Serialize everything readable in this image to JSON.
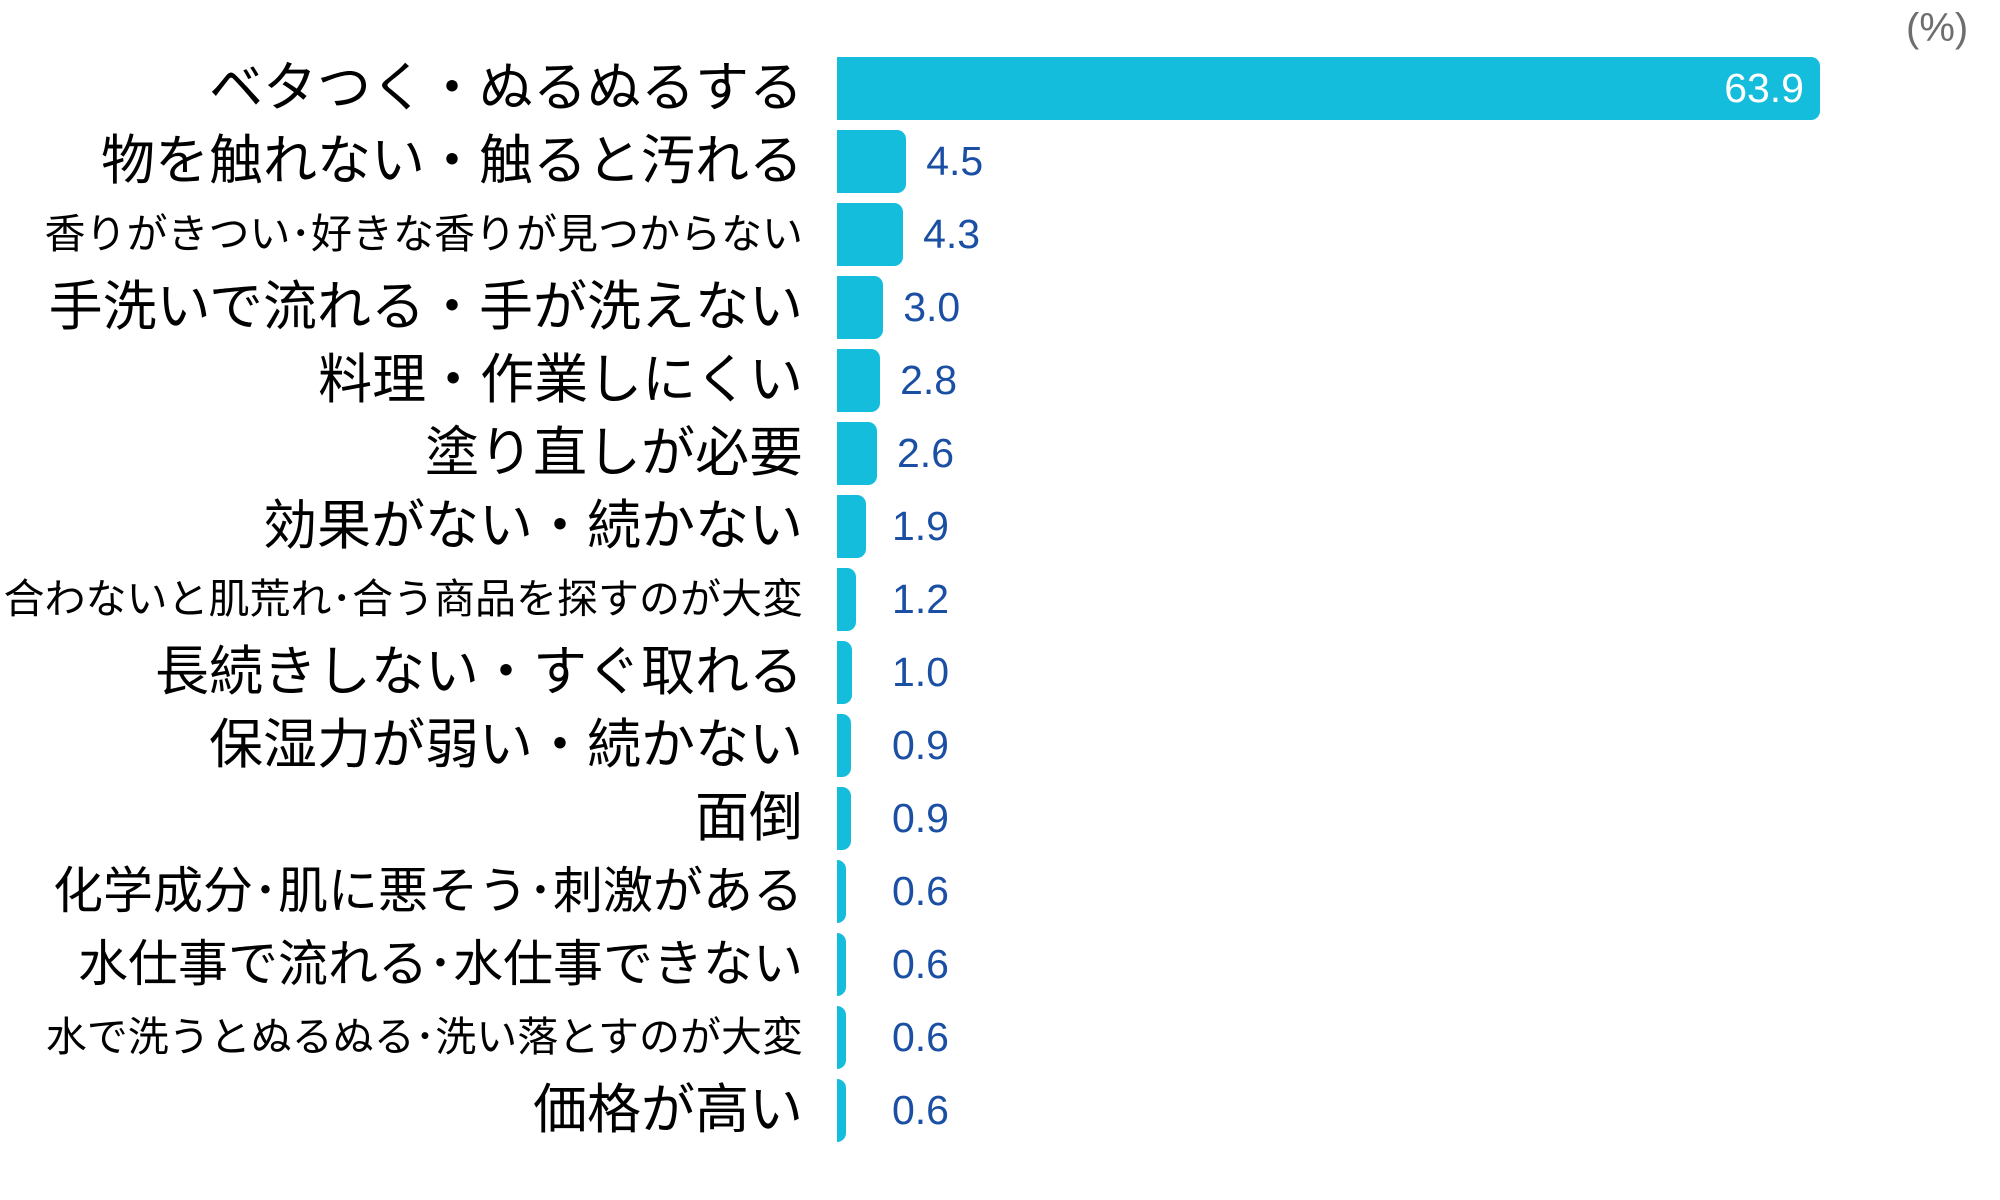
{
  "chart_data": {
    "type": "bar",
    "orientation": "horizontal",
    "title": "",
    "unit_label": "(%)",
    "xlabel": "",
    "ylabel": "",
    "xlim": [
      0,
      65
    ],
    "grid": false,
    "legend": false,
    "value_decimals": 1,
    "categories": [
      "ベタつく・ぬるぬるする",
      "物を触れない・触ると汚れる",
      "香りがきつい･好きな香りが見つからない",
      "手洗いで流れる・手が洗えない",
      "料理・作業しにくい",
      "塗り直しが必要",
      "効果がない・続かない",
      "合わないと肌荒れ･合う商品を探すのが大変",
      "長続きしない・すぐ取れる",
      "保湿力が弱い・続かない",
      "面倒",
      "化学成分･肌に悪そう･刺激がある",
      "水仕事で流れる･水仕事できない",
      "水で洗うとぬるぬる･洗い落とすのが大変",
      "価格が高い"
    ],
    "values": [
      63.9,
      4.5,
      4.3,
      3.0,
      2.8,
      2.6,
      1.9,
      1.2,
      1.0,
      0.9,
      0.9,
      0.6,
      0.6,
      0.6,
      0.6
    ]
  },
  "style": {
    "bar_color": "#15BDDC",
    "value_outside_color": "#1A4FA3",
    "value_inside_color": "#FFFFFF",
    "label_color": "#000000",
    "unit_color": "#6E6E6E",
    "label_size_tier": [
      "lg",
      "lg",
      "sm",
      "lg",
      "lg",
      "lg",
      "lg",
      "sm",
      "lg",
      "lg",
      "lg",
      "md",
      "md",
      "sm",
      "lg"
    ]
  }
}
